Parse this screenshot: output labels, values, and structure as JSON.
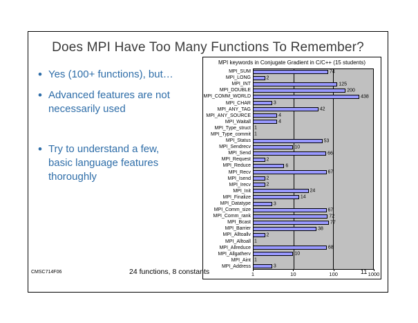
{
  "slide": {
    "title": "Does MPI Have Too Many Functions To Remember?",
    "bullets": [
      "Yes (100+ functions), but…",
      "Advanced features are not necessarily used",
      "Try to understand a few, basic language features thoroughly"
    ],
    "footer_left": "CMSC714F06",
    "footer_center": "24 functions, 8 constants",
    "page_number": "11"
  },
  "chart_data": {
    "type": "bar",
    "orientation": "horizontal",
    "title": "MPI keywords in Conjugate Gradient in C/C++ (15 students)",
    "x_scale": "log",
    "xlim": [
      1,
      1000
    ],
    "x_ticks": [
      "1",
      "10",
      "100",
      "1000"
    ],
    "grid": "vertical decade lines",
    "legend": "none",
    "categories": [
      "MPI_SUM",
      "MPI_LONG",
      "MPI_INT",
      "MPI_DOUBLE",
      "MPI_COMM_WORLD",
      "MPI_CHAR",
      "MPI_ANY_TAG",
      "MPI_ANY_SOURCE",
      "MPI_Waitall",
      "MPI_Type_struct",
      "MPI_Type_commit",
      "MPI_Status",
      "MPI_Sendrecv",
      "MPI_Send",
      "MPI_Request",
      "MPI_Reduce",
      "MPI_Recv",
      "MPI_Isend",
      "MPI_Irecv",
      "MPI_Init",
      "MPI_Finalize",
      "MPI_Datatype",
      "MPI_Comm_size",
      "MPI_Comm_rank",
      "MPI_Bcast",
      "MPI_Barrier",
      "MPI_Alltoallv",
      "MPI_Alltoall",
      "MPI_Allreduce",
      "MPI_Allgatherv",
      "MPI_Aint",
      "MPI_Address"
    ],
    "values": [
      74,
      2,
      125,
      200,
      438,
      3,
      42,
      4,
      4,
      1,
      1,
      53,
      10,
      66,
      2,
      6,
      67,
      2,
      2,
      24,
      14,
      3,
      67,
      72,
      77,
      38,
      2,
      1,
      68,
      10,
      1,
      3
    ],
    "bar_color": "#9999ff",
    "plot_bg": "#c0c0c0",
    "text_color": "#000000",
    "bullet_color": "#2e6da8"
  }
}
